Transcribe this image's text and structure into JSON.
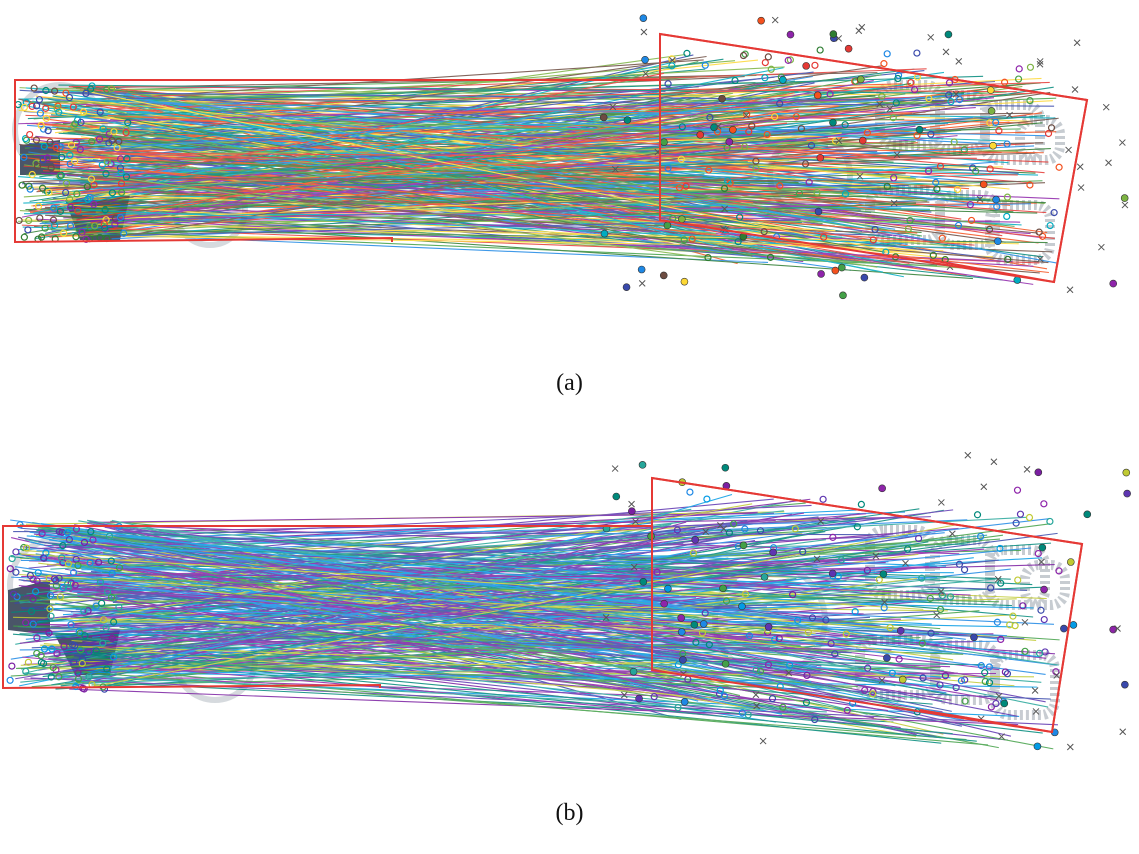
{
  "figure": {
    "panels": [
      {
        "caption": "(a)",
        "matches": "many",
        "colors": [
          "#2e7d32",
          "#8e24aa",
          "#1e88e5",
          "#f4511e",
          "#00897b",
          "#fdd835",
          "#6d4c41",
          "#3949ab",
          "#43a047",
          "#e53935",
          "#00acc1",
          "#7cb342"
        ]
      },
      {
        "caption": "(b)",
        "matches": "many",
        "colors": [
          "#8e24aa",
          "#43a047",
          "#1e88e5",
          "#5e35b1",
          "#00897b",
          "#c0ca33",
          "#3949ab",
          "#7b1fa2",
          "#26a69a",
          "#039be5"
        ]
      }
    ],
    "accent": "#e53935",
    "shape_color": "#4a5568"
  }
}
